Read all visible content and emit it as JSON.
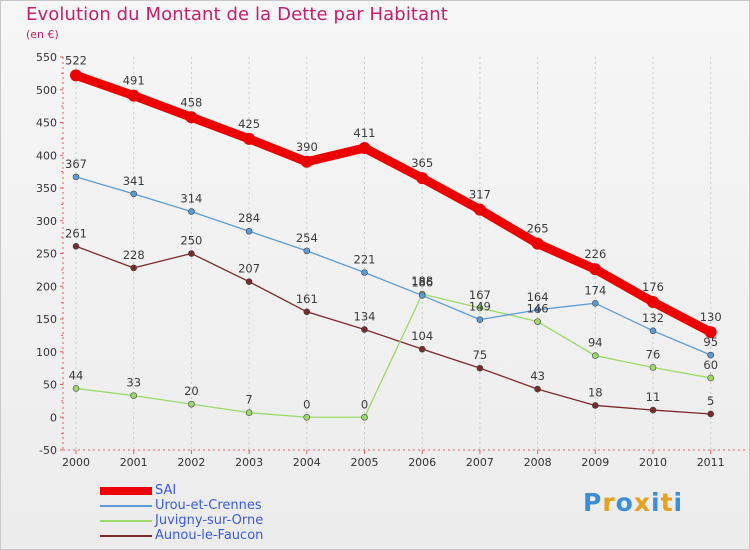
{
  "title": "Evolution du Montant de la Dette par Habitant",
  "unit": "(en €)",
  "logo": {
    "letters": [
      "P",
      "r",
      "o",
      "x",
      "i",
      "t",
      "i"
    ],
    "colors": [
      "#3c8fd6",
      "#e8a020",
      "#3c8fd6",
      "#e8a020",
      "#3c8fd6",
      "#e8a020",
      "#3c8fd6"
    ]
  },
  "chart_data": {
    "type": "line",
    "x": [
      "2000",
      "2001",
      "2002",
      "2003",
      "2004",
      "2005",
      "2006",
      "2007",
      "2008",
      "2009",
      "2010",
      "2011"
    ],
    "ylim": [
      -50,
      550
    ],
    "yticks": [
      "-50",
      "0",
      "50",
      "100",
      "150",
      "200",
      "250",
      "300",
      "350",
      "400",
      "450",
      "500",
      "550"
    ],
    "grid": "vertical dashed",
    "legend": "bottom-left",
    "series": [
      {
        "name": "SAI",
        "color": "#ee0000",
        "width": 9,
        "values": [
          522,
          491,
          458,
          425,
          390,
          411,
          365,
          317,
          265,
          226,
          176,
          130
        ],
        "labels": [
          "522",
          "491",
          "458",
          "425",
          "390",
          "411",
          "365",
          "317",
          "265",
          "226",
          "176",
          "130"
        ]
      },
      {
        "name": "Urou-et-Crennes",
        "color": "#5b9bd5",
        "width": 1.3,
        "values": [
          367,
          341,
          314,
          284,
          254,
          221,
          186,
          149,
          164,
          174,
          132,
          95
        ],
        "labels": [
          "367",
          "341",
          "314",
          "284",
          "254",
          "221",
          "186",
          "149",
          "164",
          "174",
          "132",
          "95"
        ]
      },
      {
        "name": "Juvigny-sur-Orne",
        "color": "#9ad96a",
        "width": 1.3,
        "values": [
          44,
          33,
          20,
          7,
          0,
          0,
          188,
          167,
          146,
          94,
          76,
          60
        ],
        "labels": [
          "44",
          "33",
          "20",
          "7",
          "0",
          "0",
          "188",
          "167",
          "146",
          "94",
          "76",
          "60"
        ]
      },
      {
        "name": "Aunou-le-Faucon",
        "color": "#7a2a2a",
        "width": 1.3,
        "values": [
          261,
          228,
          250,
          207,
          161,
          134,
          104,
          75,
          43,
          18,
          11,
          5
        ],
        "labels": [
          "261",
          "228",
          "250",
          "207",
          "161",
          "134",
          "104",
          "75",
          "43",
          "18",
          "11",
          "5"
        ]
      }
    ]
  }
}
